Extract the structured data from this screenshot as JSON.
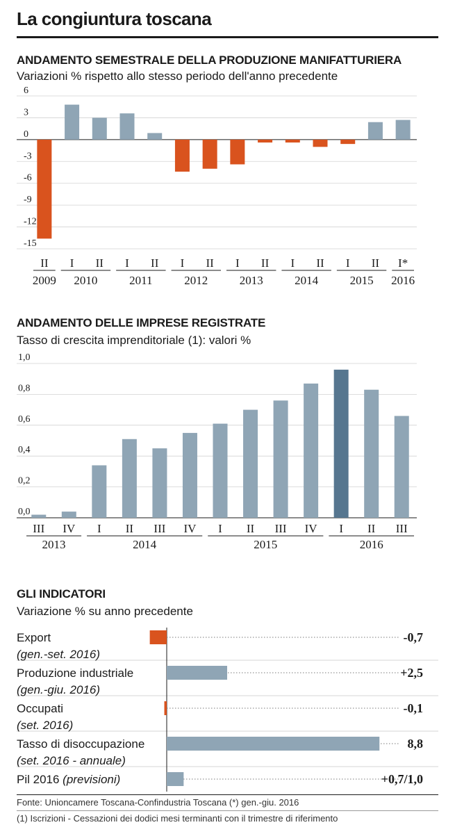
{
  "title": "La congiuntura toscana",
  "colors": {
    "positive": "#8fa5b5",
    "negative": "#d9531e",
    "highlight": "#56768f"
  },
  "chart_data": [
    {
      "type": "bar",
      "title": "ANDAMENTO SEMESTRALE DELLA PRODUZIONE MANIFATTURIERA",
      "subtitle": "Variazioni % rispetto allo stesso periodo dell'anno precedente",
      "categories": [
        "II",
        "I",
        "II",
        "I",
        "II",
        "I",
        "II",
        "I",
        "II",
        "I",
        "II",
        "I",
        "II",
        "I*"
      ],
      "groups": [
        {
          "label": "2009",
          "count": 1
        },
        {
          "label": "2010",
          "count": 2
        },
        {
          "label": "2011",
          "count": 2
        },
        {
          "label": "2012",
          "count": 2
        },
        {
          "label": "2013",
          "count": 2
        },
        {
          "label": "2014",
          "count": 2
        },
        {
          "label": "2015",
          "count": 2
        },
        {
          "label": "2016",
          "count": 1
        }
      ],
      "values": [
        -13.6,
        4.8,
        3.0,
        3.6,
        0.9,
        -4.4,
        -4.0,
        -3.4,
        -0.4,
        -0.4,
        -1.0,
        -0.6,
        2.4,
        2.7
      ],
      "yticks": [
        "6",
        "3",
        "0",
        "-3",
        "-6",
        "-9",
        "-12",
        "-15"
      ],
      "ylim": [
        -15,
        6
      ]
    },
    {
      "type": "bar",
      "title": "ANDAMENTO DELLE IMPRESE REGISTRATE",
      "subtitle": "Tasso di crescita imprenditoriale (1): valori %",
      "categories": [
        "III",
        "IV",
        "I",
        "II",
        "III",
        "IV",
        "I",
        "II",
        "III",
        "IV",
        "I",
        "II",
        "III"
      ],
      "groups": [
        {
          "label": "2013",
          "count": 2
        },
        {
          "label": "2014",
          "count": 4
        },
        {
          "label": "2015",
          "count": 4
        },
        {
          "label": "2016",
          "count": 3
        }
      ],
      "values": [
        0.02,
        0.04,
        0.34,
        0.51,
        0.45,
        0.55,
        0.61,
        0.7,
        0.76,
        0.87,
        0.96,
        0.83,
        0.66
      ],
      "highlight_index": 10,
      "yticks": [
        "1,0",
        "0,8",
        "0,6",
        "0,4",
        "0,2",
        "0,0"
      ],
      "ylim": [
        0,
        1.0
      ]
    },
    {
      "type": "bar",
      "title": "GLI INDICATORI",
      "subtitle": "Variazione % su anno precedente",
      "items": [
        {
          "label": "Export",
          "note": "(gen.-set. 2016)",
          "value": -0.7,
          "value_label": "-0,7"
        },
        {
          "label": "Produzione industriale",
          "note": "(gen.-giu. 2016)",
          "value": 2.5,
          "value_label": "+2,5"
        },
        {
          "label": "Occupati",
          "note": "(set. 2016)",
          "value": -0.1,
          "value_label": "-0,1"
        },
        {
          "label": "Tasso di disoccupazione",
          "note": "(set. 2016 - annuale)",
          "value": 8.8,
          "value_label": "8,8"
        },
        {
          "label": "Pil 2016",
          "note": "(previsioni)",
          "value": 0.7,
          "value_label": "+0,7/1,0",
          "inline_note": true
        }
      ]
    }
  ],
  "footer": {
    "source": "Fonte: Unioncamere Toscana-Confindustria Toscana (*) gen.-giu. 2016",
    "note": "(1) Iscrizioni - Cessazioni dei dodici mesi terminanti con il trimestre di riferimento"
  }
}
